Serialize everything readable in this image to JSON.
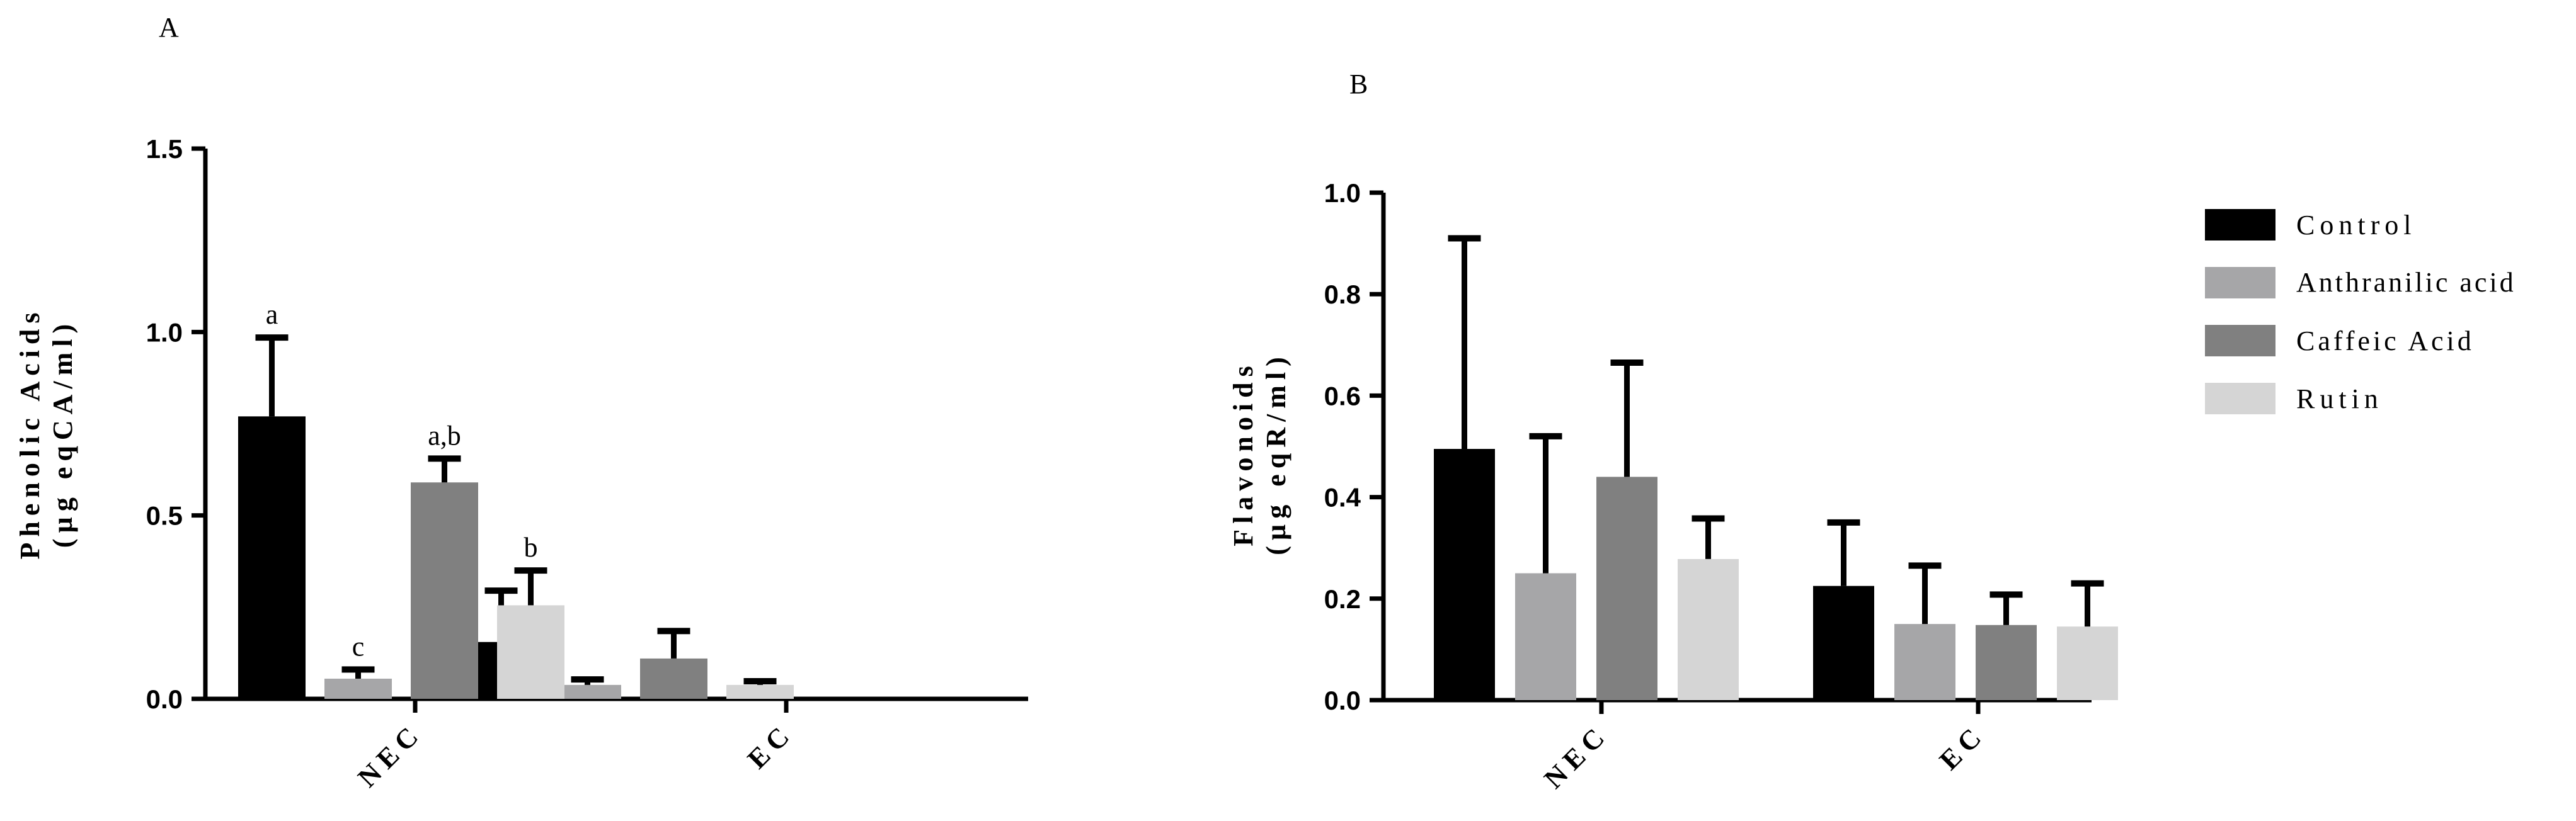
{
  "panels": {
    "A": {
      "label": "A"
    },
    "B": {
      "label": "B"
    }
  },
  "legend": {
    "items": [
      {
        "label": "Control",
        "color": "#000000"
      },
      {
        "label": "Anthranilic acid",
        "color": "#a6a6a8"
      },
      {
        "label": "Caffeic Acid",
        "color": "#808080"
      },
      {
        "label": "Rutin",
        "color": "#d5d5d5"
      }
    ]
  },
  "chart_data": [
    {
      "type": "bar",
      "panel": "A",
      "title": "",
      "xlabel": "",
      "ylabel_line1": "Phenolic Acids",
      "ylabel_line2": "(µg eqCA/ml)",
      "categories": [
        "NEC",
        "EC"
      ],
      "ylim": [
        0,
        1.5
      ],
      "yticks": [
        0.0,
        0.5,
        1.0,
        1.5
      ],
      "ytick_labels": [
        "0.0",
        "0.5",
        "1.0",
        "1.5"
      ],
      "grid": false,
      "series": [
        {
          "name": "Control",
          "values": [
            0.77,
            0.155
          ],
          "errors": [
            0.215,
            0.14
          ],
          "annotations": [
            "a",
            ""
          ]
        },
        {
          "name": "Anthranilic acid",
          "values": [
            0.055,
            0.038
          ],
          "errors": [
            0.025,
            0.015
          ],
          "annotations": [
            "c",
            ""
          ]
        },
        {
          "name": "Caffeic Acid",
          "values": [
            0.59,
            0.11
          ],
          "errors": [
            0.065,
            0.075
          ],
          "annotations": [
            "a,b",
            ""
          ]
        },
        {
          "name": "Rutin",
          "values": [
            0.255,
            0.038
          ],
          "errors": [
            0.095,
            0.01
          ],
          "annotations": [
            "b",
            ""
          ]
        }
      ]
    },
    {
      "type": "bar",
      "panel": "B",
      "title": "",
      "xlabel": "",
      "ylabel_line1": "Flavonoids",
      "ylabel_line2": "(µg eqR/ml)",
      "categories": [
        "NEC",
        "EC"
      ],
      "ylim": [
        0,
        1.0
      ],
      "yticks": [
        0.0,
        0.2,
        0.4,
        0.6,
        0.8,
        1.0
      ],
      "ytick_labels": [
        "0.0",
        "0.2",
        "0.4",
        "0.6",
        "0.8",
        "1.0"
      ],
      "grid": false,
      "legend_position": "right",
      "series": [
        {
          "name": "Control",
          "values": [
            0.495,
            0.225
          ],
          "errors": [
            0.415,
            0.125
          ],
          "annotations": [
            "",
            ""
          ]
        },
        {
          "name": "Anthranilic acid",
          "values": [
            0.25,
            0.15
          ],
          "errors": [
            0.27,
            0.115
          ],
          "annotations": [
            "",
            ""
          ]
        },
        {
          "name": "Caffeic Acid",
          "values": [
            0.44,
            0.148
          ],
          "errors": [
            0.225,
            0.06
          ],
          "annotations": [
            "",
            ""
          ]
        },
        {
          "name": "Rutin",
          "values": [
            0.278,
            0.145
          ],
          "errors": [
            0.08,
            0.085
          ],
          "annotations": [
            "",
            ""
          ]
        }
      ]
    }
  ]
}
